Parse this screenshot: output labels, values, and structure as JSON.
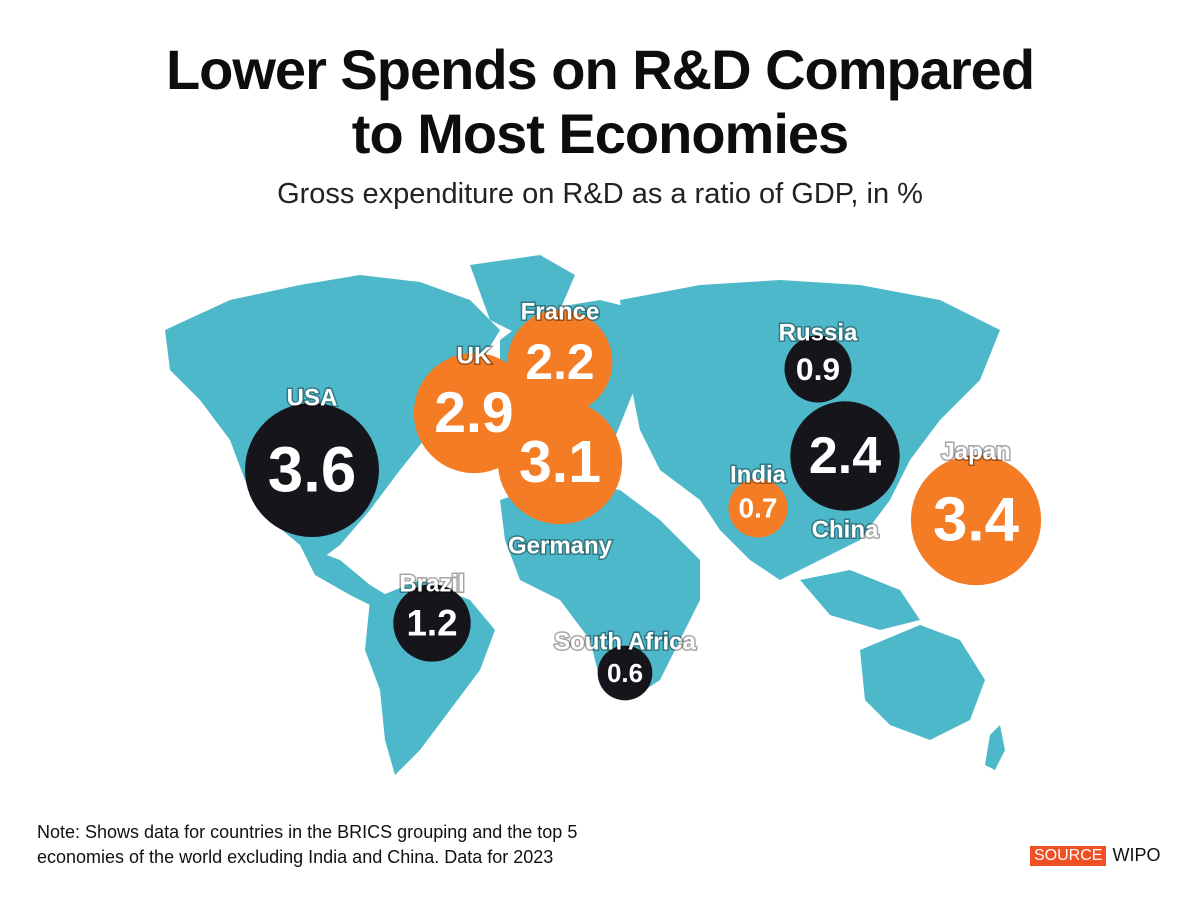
{
  "header": {
    "title_line1": "Lower Spends on R&D Compared",
    "title_line2": "to Most Economies",
    "subtitle": "Gross expenditure on R&D as a ratio of GDP, in %"
  },
  "colors": {
    "land": "#4db8c9",
    "bubble_dark": "#16151c",
    "bubble_orange": "#f47c24",
    "source_tag": "#f04e23"
  },
  "chart_data": {
    "type": "bubble-map",
    "title": "Lower Spends on R&D Compared to Most Economies",
    "subtitle": "Gross expenditure on R&D as a ratio of GDP, in %",
    "unit": "% of GDP",
    "year": 2023,
    "points": [
      {
        "country": "USA",
        "value": 3.6,
        "style": "dark"
      },
      {
        "country": "UK",
        "value": 2.9,
        "style": "orange"
      },
      {
        "country": "France",
        "value": 2.2,
        "style": "orange"
      },
      {
        "country": "Germany",
        "value": 3.1,
        "style": "orange"
      },
      {
        "country": "Russia",
        "value": 0.9,
        "style": "dark"
      },
      {
        "country": "China",
        "value": 2.4,
        "style": "dark"
      },
      {
        "country": "India",
        "value": 0.7,
        "style": "orange"
      },
      {
        "country": "Japan",
        "value": 3.4,
        "style": "orange"
      },
      {
        "country": "Brazil",
        "value": 1.2,
        "style": "dark"
      },
      {
        "country": "South Africa",
        "value": 0.6,
        "style": "dark"
      }
    ]
  },
  "footer": {
    "note_line1": "Note: Shows data for countries in the BRICS grouping and the top 5",
    "note_line2": "economies of the world excluding India and China. Data for 2023",
    "source_label": "SOURCE",
    "source_value": "WIPO"
  }
}
